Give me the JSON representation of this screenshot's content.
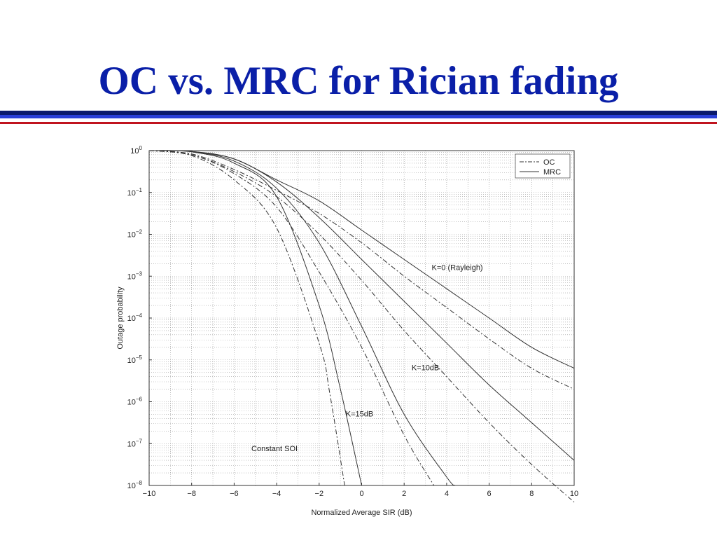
{
  "slide": {
    "title": "OC vs. MRC for Rician fading",
    "colors": {
      "title": "#0a1fa8",
      "rule_navy": "#0b1a6b",
      "rule_blue": "#2a3fd6",
      "rule_red": "#c0141f"
    }
  },
  "chart_data": {
    "type": "line",
    "title": "",
    "xlabel": "Normalized Average SIR (dB)",
    "ylabel": "Outage probability",
    "xlim": [
      -10,
      10
    ],
    "ylim_log10": [
      -8,
      0
    ],
    "yscale": "log",
    "grid": true,
    "legend_position": "top-right",
    "x_ticks": [
      "−10",
      "−8",
      "−6",
      "−4",
      "−2",
      "0",
      "2",
      "4",
      "6",
      "8",
      "10"
    ],
    "y_tick_exponents": [
      "0",
      "−1",
      "−2",
      "−3",
      "−4",
      "−5",
      "−6",
      "−7",
      "−8"
    ],
    "y_tick_base": "10",
    "legend": [
      {
        "label": "OC",
        "style": "dashdot"
      },
      {
        "label": "MRC",
        "style": "solid"
      }
    ],
    "annotations": [
      {
        "text": "K=0 (Rayleigh)",
        "x": 4.5,
        "y_log10": -2.85
      },
      {
        "text": "K=10dB",
        "x": 3.0,
        "y_log10": -5.25
      },
      {
        "text": "K=15dB",
        "x": -0.1,
        "y_log10": -6.35
      },
      {
        "text": "Constant SOI",
        "x": -4.1,
        "y_log10": -7.18
      }
    ],
    "series": [
      {
        "style": "solid",
        "points": [
          [
            -10,
            0
          ],
          [
            -8,
            -0.02
          ],
          [
            -6,
            -0.2
          ],
          [
            -4,
            -0.7
          ],
          [
            -2,
            -1.2
          ],
          [
            0,
            -1.9
          ],
          [
            2,
            -2.6
          ],
          [
            4,
            -3.3
          ],
          [
            6,
            -4.0
          ],
          [
            8,
            -4.7
          ],
          [
            10,
            -5.2
          ]
        ]
      },
      {
        "style": "dashdot",
        "points": [
          [
            -10,
            0
          ],
          [
            -8,
            -0.08
          ],
          [
            -6,
            -0.45
          ],
          [
            -4,
            -0.95
          ],
          [
            -2,
            -1.5
          ],
          [
            0,
            -2.2
          ],
          [
            2,
            -3.0
          ],
          [
            4,
            -3.75
          ],
          [
            6,
            -4.5
          ],
          [
            8,
            -5.2
          ],
          [
            10,
            -5.7
          ]
        ]
      },
      {
        "style": "solid",
        "points": [
          [
            -10,
            0
          ],
          [
            -8,
            -0.02
          ],
          [
            -6,
            -0.2
          ],
          [
            -4,
            -0.75
          ],
          [
            -2,
            -1.6
          ],
          [
            0,
            -2.6
          ],
          [
            2,
            -3.6
          ],
          [
            4,
            -4.6
          ],
          [
            6,
            -5.6
          ],
          [
            8,
            -6.5
          ],
          [
            10,
            -7.4
          ]
        ]
      },
      {
        "style": "dashdot",
        "points": [
          [
            -10,
            0
          ],
          [
            -8,
            -0.1
          ],
          [
            -6,
            -0.5
          ],
          [
            -4,
            -1.1
          ],
          [
            -2,
            -2.0
          ],
          [
            0,
            -3.1
          ],
          [
            2,
            -4.3
          ],
          [
            4,
            -5.4
          ],
          [
            6,
            -6.5
          ],
          [
            8,
            -7.5
          ],
          [
            10,
            -8.4
          ]
        ]
      },
      {
        "style": "solid",
        "points": [
          [
            -10,
            0
          ],
          [
            -8,
            -0.02
          ],
          [
            -6,
            -0.25
          ],
          [
            -4,
            -0.9
          ],
          [
            -2,
            -2.2
          ],
          [
            0,
            -4.2
          ],
          [
            2,
            -6.3
          ],
          [
            4,
            -7.8
          ],
          [
            4.4,
            -8
          ]
        ]
      },
      {
        "style": "dashdot",
        "points": [
          [
            -10,
            0
          ],
          [
            -8,
            -0.1
          ],
          [
            -6,
            -0.55
          ],
          [
            -4,
            -1.35
          ],
          [
            -2,
            -2.9
          ],
          [
            0,
            -4.7
          ],
          [
            2,
            -6.8
          ],
          [
            3.4,
            -8
          ]
        ]
      },
      {
        "style": "solid",
        "points": [
          [
            -10,
            0
          ],
          [
            -8,
            -0.03
          ],
          [
            -6,
            -0.3
          ],
          [
            -4,
            -1.1
          ],
          [
            -2,
            -3.7
          ],
          [
            -1,
            -5.7
          ],
          [
            0,
            -8
          ]
        ]
      },
      {
        "style": "dashdot",
        "points": [
          [
            -10,
            0
          ],
          [
            -8,
            -0.12
          ],
          [
            -6,
            -0.7
          ],
          [
            -4,
            -1.85
          ],
          [
            -2,
            -4.6
          ],
          [
            -1.5,
            -5.8
          ],
          [
            -0.8,
            -8
          ]
        ]
      }
    ]
  }
}
